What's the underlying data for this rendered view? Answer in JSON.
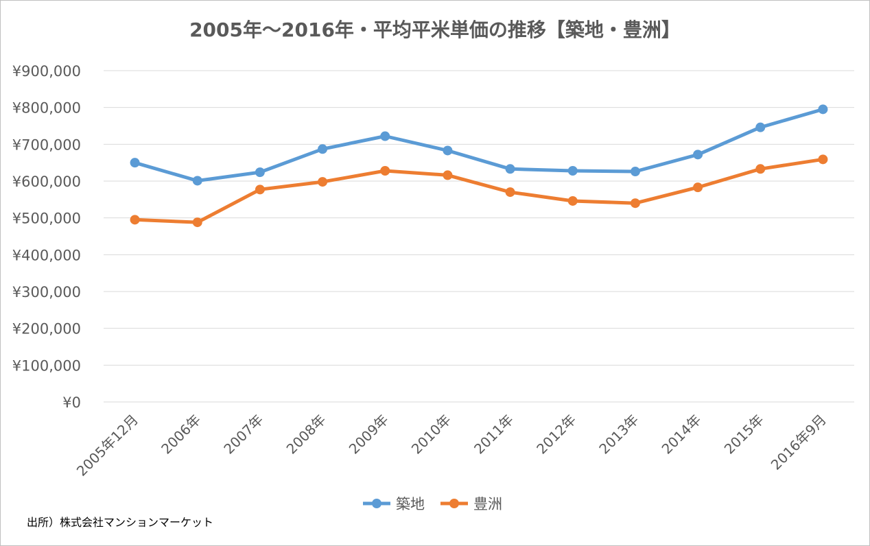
{
  "chart_data": {
    "type": "line",
    "title": "2005年～2016年・平均平米単価の推移【築地・豊洲】",
    "xlabel": "",
    "ylabel": "",
    "categories": [
      "2005年12月",
      "2006年",
      "2007年",
      "2008年",
      "2009年",
      "2010年",
      "2011年",
      "2012年",
      "2013年",
      "2014年",
      "2015年",
      "2016年9月"
    ],
    "series": [
      {
        "name": "築地",
        "color": "#5b9bd5",
        "values": [
          650000,
          601000,
          624000,
          687000,
          722000,
          683000,
          633000,
          628000,
          626000,
          672000,
          746000,
          795000
        ]
      },
      {
        "name": "豊洲",
        "color": "#ed7d31",
        "values": [
          495000,
          488000,
          577000,
          598000,
          628000,
          616000,
          570000,
          546000,
          540000,
          583000,
          633000,
          659000
        ]
      }
    ],
    "ylim": [
      0,
      900000
    ],
    "yticks": [
      "¥0",
      "¥100,000",
      "¥200,000",
      "¥300,000",
      "¥400,000",
      "¥500,000",
      "¥600,000",
      "¥700,000",
      "¥800,000",
      "¥900,000"
    ],
    "grid": true,
    "legend": "bottom"
  },
  "footer": {
    "source": "出所）株式会社マンションマーケット"
  }
}
